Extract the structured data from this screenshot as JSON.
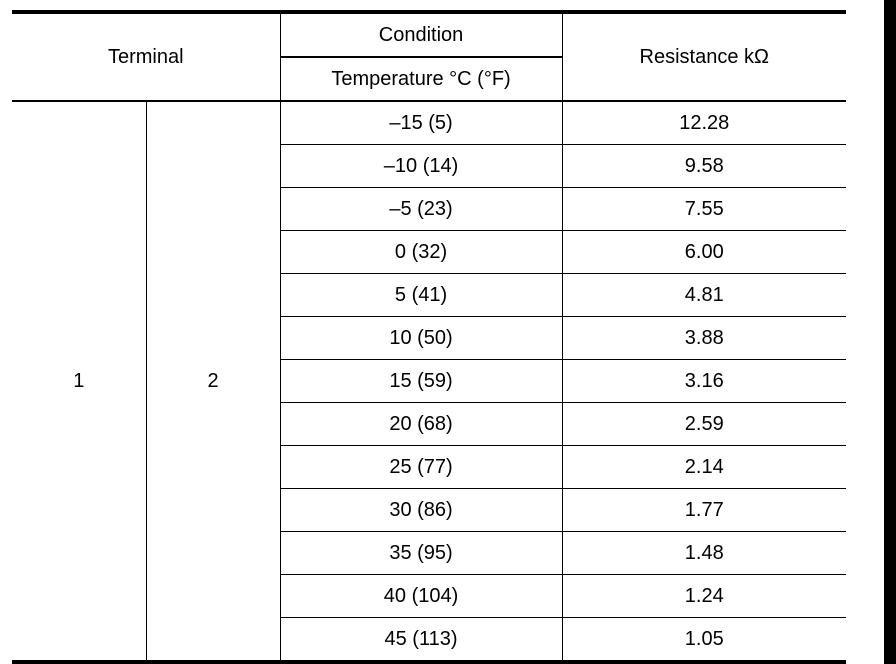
{
  "header": {
    "terminal": "Terminal",
    "condition": "Condition",
    "temperature": "Temperature °C (°F)",
    "resistance": "Resistance kΩ"
  },
  "terminals": {
    "a": "1",
    "b": "2"
  },
  "rows": [
    {
      "temperature": "–15 (5)",
      "resistance": "12.28"
    },
    {
      "temperature": "–10 (14)",
      "resistance": "9.58"
    },
    {
      "temperature": "–5 (23)",
      "resistance": "7.55"
    },
    {
      "temperature": "0 (32)",
      "resistance": "6.00"
    },
    {
      "temperature": "5 (41)",
      "resistance": "4.81"
    },
    {
      "temperature": "10 (50)",
      "resistance": "3.88"
    },
    {
      "temperature": "15 (59)",
      "resistance": "3.16"
    },
    {
      "temperature": "20 (68)",
      "resistance": "2.59"
    },
    {
      "temperature": "25 (77)",
      "resistance": "2.14"
    },
    {
      "temperature": "30 (86)",
      "resistance": "1.77"
    },
    {
      "temperature": "35 (95)",
      "resistance": "1.48"
    },
    {
      "temperature": "40 (104)",
      "resistance": "1.24"
    },
    {
      "temperature": "45 (113)",
      "resistance": "1.05"
    }
  ]
}
